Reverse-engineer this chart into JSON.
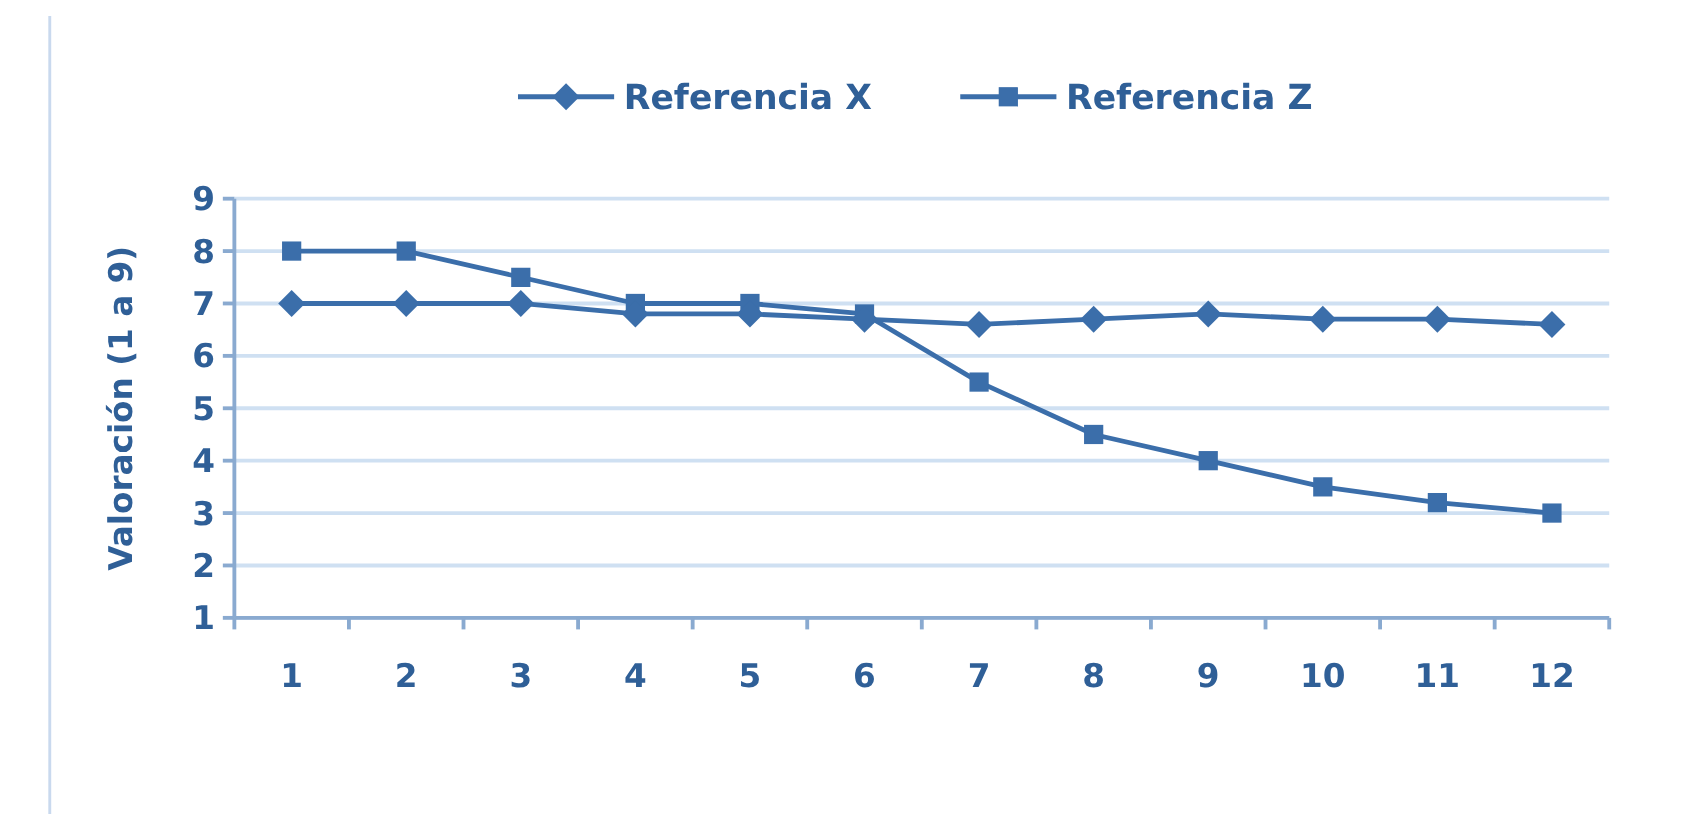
{
  "chart_data": {
    "type": "line",
    "ylabel": "Valoración (1 a 9)",
    "categories": [
      "1",
      "2",
      "3",
      "4",
      "5",
      "6",
      "7",
      "8",
      "9",
      "10",
      "11",
      "12"
    ],
    "series": [
      {
        "name": "Referencia X",
        "color": "#3b6eaa",
        "marker": "diamond",
        "values": [
          7,
          7,
          7,
          6.8,
          6.8,
          6.7,
          6.6,
          6.7,
          6.8,
          6.7,
          6.7,
          6.6
        ]
      },
      {
        "name": "Referencia Z",
        "color": "#3b6eaa",
        "marker": "square",
        "values": [
          8,
          8,
          7.5,
          7,
          7,
          6.8,
          5.5,
          4.5,
          4,
          3.5,
          3.2,
          3.0
        ]
      }
    ],
    "ylim": [
      1,
      9
    ],
    "yticks": [
      1,
      2,
      3,
      4,
      5,
      6,
      7,
      8,
      9
    ],
    "grid": "y",
    "legend": "top"
  }
}
